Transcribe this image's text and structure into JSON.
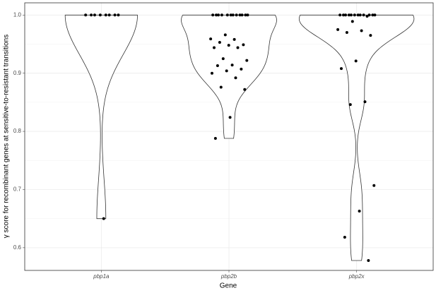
{
  "chart_data": {
    "type": "violin",
    "x_label": "Gene",
    "y_label": "γ score for recombinant genes at sensitive-to-resistant transitions",
    "categories": [
      "pbp1a",
      "pbp2b",
      "pbp2x"
    ],
    "values": [
      [
        1,
        1,
        1,
        1,
        1,
        1,
        1,
        1,
        0.65
      ],
      [
        1,
        1,
        1,
        1,
        1,
        1,
        1,
        1,
        1,
        1,
        1,
        1,
        0.966,
        0.959,
        0.958,
        0.953,
        0.949,
        0.948,
        0.944,
        0.944,
        0.925,
        0.922,
        0.914,
        0.913,
        0.907,
        0.904,
        0.9,
        0.892,
        0.876,
        0.872,
        0.824,
        0.788
      ],
      [
        1,
        1,
        1,
        1,
        1,
        1,
        1,
        1,
        1,
        1,
        1,
        1,
        0.998,
        0.989,
        0.975,
        0.973,
        0.97,
        0.965,
        0.921,
        0.908,
        0.851,
        0.846,
        0.707,
        0.663,
        0.618,
        0.578
      ]
    ],
    "color": "#000000",
    "ylim": [
      0.561,
      1.021
    ],
    "yticks": [
      0.6,
      0.7,
      0.8,
      0.9,
      {
        "value": 1,
        "label": "1.0"
      }
    ],
    "grid": true
  }
}
